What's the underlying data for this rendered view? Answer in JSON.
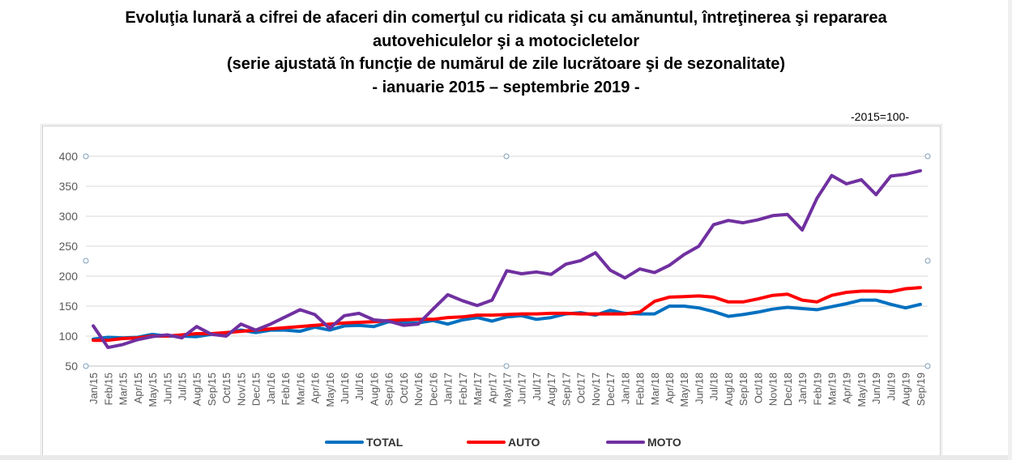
{
  "title_lines": [
    "Evoluţia lunară a cifrei de afaceri din comerţul cu ridicata şi cu amănuntul, întreţinerea şi repararea",
    "autovehiculelor şi a motocicletelor",
    "(serie ajustată în funcţie de numărul de zile lucrătoare şi de sezonalitate)",
    "- ianuarie 2015 – septembrie 2019 -"
  ],
  "base_note": "-2015=100-",
  "chart_data": {
    "type": "line",
    "ylim": [
      50,
      400
    ],
    "yticks": [
      50,
      100,
      150,
      200,
      250,
      300,
      350,
      400
    ],
    "grid": "horizontal",
    "legend_position": "bottom",
    "categories": [
      "Jan/15",
      "Feb/15",
      "Mar/15",
      "Apr/15",
      "May/15",
      "Jun/15",
      "Jul/15",
      "Aug/15",
      "Sep/15",
      "Oct/15",
      "Nov/15",
      "Dec/15",
      "Jan/16",
      "Feb/16",
      "Mar/16",
      "Apr/16",
      "May/16",
      "Jun/16",
      "Jul/16",
      "Aug/16",
      "Sep/16",
      "Oct/16",
      "Nov/16",
      "Dec/16",
      "Jan/17",
      "Feb/17",
      "Mar/17",
      "Apr/17",
      "May/17",
      "Jun/17",
      "Jul/17",
      "Aug/17",
      "Sep/17",
      "Oct/17",
      "Nov/17",
      "Dec/17",
      "Jan/18",
      "Feb/18",
      "Mar/18",
      "Apr/18",
      "May/18",
      "Jun/18",
      "Jul/18",
      "Aug/18",
      "Sep/18",
      "Oct/18",
      "Nov/18",
      "Dec/18",
      "Jan/19",
      "Feb/19",
      "Mar/19",
      "Apr/19",
      "May/19",
      "Jun/19",
      "Jul/19",
      "Aug/19",
      "Sep/19"
    ],
    "series": [
      {
        "name": "TOTAL",
        "color": "#0070c0",
        "values": [
          95,
          98,
          97,
          98,
          103,
          100,
          100,
          99,
          103,
          105,
          110,
          106,
          110,
          110,
          108,
          115,
          110,
          117,
          118,
          116,
          124,
          122,
          122,
          126,
          120,
          127,
          131,
          125,
          132,
          134,
          128,
          131,
          137,
          139,
          135,
          143,
          138,
          137,
          137,
          150,
          150,
          147,
          141,
          133,
          136,
          140,
          145,
          148,
          146,
          144,
          149,
          154,
          160,
          160,
          153,
          147,
          153
        ]
      },
      {
        "name": "AUTO",
        "color": "#ff0000",
        "values": [
          93,
          93,
          96,
          97,
          100,
          100,
          102,
          104,
          104,
          106,
          108,
          110,
          112,
          114,
          116,
          118,
          120,
          122,
          123,
          124,
          126,
          127,
          128,
          128,
          131,
          132,
          135,
          135,
          136,
          137,
          137,
          138,
          138,
          137,
          137,
          137,
          137,
          140,
          158,
          165,
          166,
          167,
          165,
          157,
          157,
          162,
          168,
          170,
          160,
          157,
          168,
          173,
          175,
          175,
          174,
          179,
          181
        ]
      },
      {
        "name": "MOTO",
        "color": "#7030a0",
        "values": [
          117,
          81,
          86,
          94,
          99,
          102,
          97,
          116,
          103,
          100,
          120,
          110,
          120,
          132,
          144,
          136,
          113,
          134,
          138,
          127,
          125,
          118,
          120,
          145,
          169,
          159,
          151,
          160,
          209,
          204,
          207,
          203,
          220,
          226,
          239,
          210,
          197,
          212,
          206,
          218,
          236,
          250,
          286,
          293,
          289,
          294,
          301,
          303,
          277,
          330,
          368,
          354,
          361,
          336,
          367,
          370,
          376
        ]
      }
    ]
  }
}
